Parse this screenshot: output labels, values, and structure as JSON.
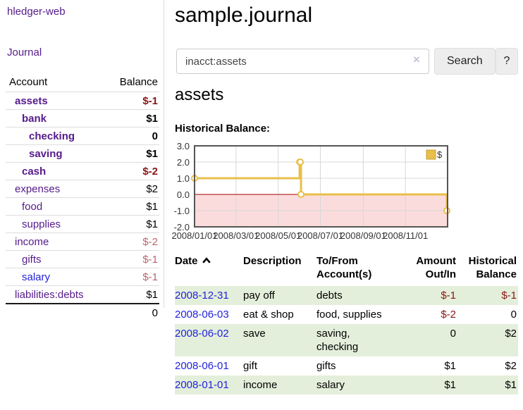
{
  "app": {
    "title": "hledger-web",
    "nav_journal": "Journal"
  },
  "sidebar": {
    "accounts": {
      "header_account": "Account",
      "header_balance": "Balance",
      "rows": [
        {
          "name": "assets",
          "balance": "$-1"
        },
        {
          "name": "bank",
          "balance": "$1"
        },
        {
          "name": "checking",
          "balance": "0"
        },
        {
          "name": "saving",
          "balance": "$1"
        },
        {
          "name": "cash",
          "balance": "$-2"
        },
        {
          "name": "expenses",
          "balance": "$2"
        },
        {
          "name": "food",
          "balance": "$1"
        },
        {
          "name": "supplies",
          "balance": "$1"
        },
        {
          "name": "income",
          "balance": "$-2"
        },
        {
          "name": "gifts",
          "balance": "$-1"
        },
        {
          "name": "salary",
          "balance": "$-1"
        },
        {
          "name": "liabilities:debts",
          "balance": "$1"
        }
      ],
      "total": "0"
    }
  },
  "main": {
    "title": "sample.journal",
    "search": {
      "value": "inacct:assets",
      "clear": "×",
      "button": "Search",
      "help": "?"
    },
    "heading": "assets",
    "chart_label": "Historical Balance:"
  },
  "chart_data": {
    "type": "line",
    "step": true,
    "title": "Historical Balance",
    "ylim": [
      -2.0,
      3.0
    ],
    "yticks": [
      3.0,
      2.0,
      1.0,
      0.0,
      -1.0,
      -2.0
    ],
    "xticks": [
      "2008/01/01",
      "2008/03/01",
      "2008/05/01",
      "2008/07/01",
      "2008/09/01",
      "2008/11/01"
    ],
    "x_range": [
      "2008-01-01",
      "2009-01-01"
    ],
    "series": [
      {
        "name": "$",
        "color": "#e8bf4a",
        "points": [
          [
            "2008-01-01",
            1
          ],
          [
            "2008-06-01",
            2
          ],
          [
            "2008-06-02",
            2
          ],
          [
            "2008-06-03",
            0
          ],
          [
            "2008-12-31",
            -1
          ]
        ]
      }
    ],
    "legend_position": "top-right",
    "grid": true,
    "grid_color": "#d8d8d8",
    "negative_fill": "#fbdcdc",
    "zero_line_color": "#a40000",
    "border_color": "#555555"
  },
  "register": {
    "headers": [
      "Date",
      "Description",
      "To/From Account(s)",
      "Amount Out/In",
      "Historical Balance"
    ],
    "rows": [
      {
        "date": "2008-12-31",
        "description": "pay off",
        "accounts": "debts",
        "amount": "$-1",
        "balance": "$-1"
      },
      {
        "date": "2008-06-03",
        "description": "eat & shop",
        "accounts": "food, supplies",
        "amount": "$-2",
        "balance": "0"
      },
      {
        "date": "2008-06-02",
        "description": "save",
        "accounts": "saving, checking",
        "amount": "0",
        "balance": "$2"
      },
      {
        "date": "2008-06-01",
        "description": "gift",
        "accounts": "gifts",
        "amount": "$1",
        "balance": "$2"
      },
      {
        "date": "2008-01-01",
        "description": "income",
        "accounts": "salary",
        "amount": "$1",
        "balance": "$1"
      }
    ]
  },
  "colors": {
    "link_purple": "#551a8b",
    "link_blue": "#2222dd",
    "negative_strong": "#8b1414",
    "negative_soft": "#b8656c",
    "row_green": "#e4efdb",
    "chart_gold": "#e8bf4a"
  }
}
